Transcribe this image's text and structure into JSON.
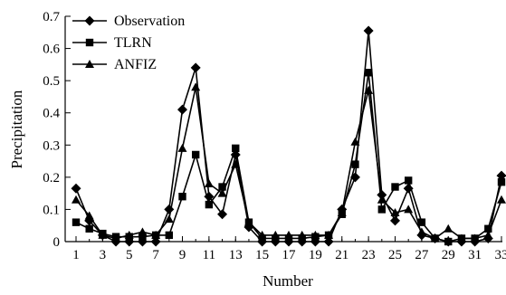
{
  "chart_data": {
    "type": "line",
    "xlabel": "Number",
    "ylabel": "Precipitation",
    "xlim": [
      0,
      33
    ],
    "ylim": [
      0,
      0.7
    ],
    "xticks": [
      1,
      3,
      5,
      7,
      9,
      11,
      13,
      15,
      17,
      19,
      21,
      23,
      25,
      27,
      29,
      31,
      33
    ],
    "yticks": [
      0,
      0.1,
      0.2,
      0.3,
      0.4,
      0.5,
      0.6,
      0.7
    ],
    "ytick_labels": [
      "0",
      "0.1",
      "0.2",
      "0.3",
      "0.4",
      "0.5",
      "0.6",
      "0.7"
    ],
    "legend_position": "top-left",
    "grid": false,
    "x": [
      1,
      2,
      3,
      4,
      5,
      6,
      7,
      8,
      9,
      10,
      11,
      12,
      13,
      14,
      15,
      16,
      17,
      18,
      19,
      20,
      21,
      22,
      23,
      24,
      25,
      26,
      27,
      28,
      29,
      30,
      31,
      32,
      33
    ],
    "series": [
      {
        "name": "Observation",
        "marker": "diamond",
        "values": [
          0.165,
          0.065,
          0.02,
          0.0,
          0.0,
          0.0,
          0.0,
          0.1,
          0.41,
          0.54,
          0.14,
          0.085,
          0.27,
          0.045,
          0.0,
          0.0,
          0.0,
          0.0,
          0.0,
          0.0,
          0.1,
          0.2,
          0.655,
          0.145,
          0.065,
          0.165,
          0.02,
          0.01,
          0.0,
          0.0,
          0.0,
          0.01,
          0.205
        ]
      },
      {
        "name": "TLRN",
        "marker": "square",
        "values": [
          0.06,
          0.04,
          0.025,
          0.015,
          0.015,
          0.015,
          0.02,
          0.02,
          0.14,
          0.27,
          0.115,
          0.17,
          0.29,
          0.06,
          0.01,
          0.01,
          0.01,
          0.01,
          0.015,
          0.02,
          0.085,
          0.24,
          0.525,
          0.1,
          0.17,
          0.19,
          0.06,
          0.01,
          0.0,
          0.01,
          0.01,
          0.04,
          0.185
        ]
      },
      {
        "name": "ANFIZ",
        "marker": "triangle",
        "values": [
          0.13,
          0.08,
          0.02,
          0.01,
          0.02,
          0.03,
          0.02,
          0.07,
          0.29,
          0.48,
          0.18,
          0.15,
          0.24,
          0.06,
          0.02,
          0.02,
          0.02,
          0.02,
          0.02,
          0.02,
          0.09,
          0.31,
          0.47,
          0.13,
          0.09,
          0.1,
          0.03,
          0.01,
          0.04,
          0.01,
          0.01,
          0.02,
          0.13
        ]
      }
    ]
  }
}
